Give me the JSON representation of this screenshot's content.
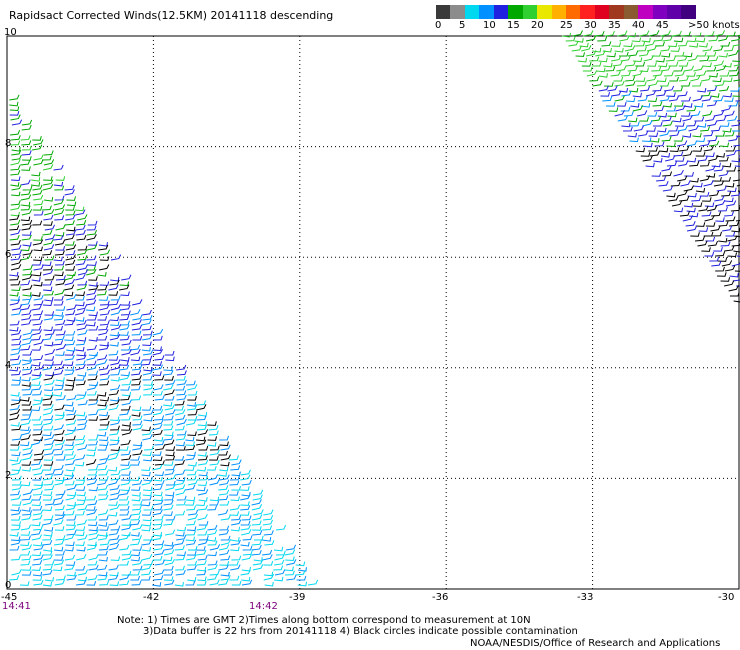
{
  "title": "Rapidsact Corrected Winds(12.5KM) 20141118 descending",
  "colorbar": {
    "labels": [
      "0",
      "5",
      "10",
      "15",
      "20",
      "25",
      "30",
      "35",
      "40",
      "45",
      ">50 knots"
    ],
    "colors": [
      "#3a3a3a",
      "#8c8c8c",
      "#00d8f0",
      "#0090ff",
      "#2020e0",
      "#00a800",
      "#30d030",
      "#e8e800",
      "#ffb000",
      "#ff6a00",
      "#ff2020",
      "#e00020",
      "#a03820",
      "#8a5a30",
      "#c000c0",
      "#8000c0",
      "#6000a8",
      "#400080"
    ]
  },
  "axes": {
    "x_ticks": [
      "-45",
      "-42",
      "-39",
      "-36",
      "-33",
      "-30"
    ],
    "y_ticks": [
      "10",
      "8",
      "6",
      "4",
      "2",
      "0"
    ],
    "x_range": [
      -45,
      -30
    ],
    "y_range": [
      0,
      10
    ]
  },
  "times": [
    "14:41",
    "14:42"
  ],
  "notes": [
    "Note: 1) Times are GMT 2)Times along bottom correspond to measurement at 10N",
    "3)Data buffer is 22 hrs from 20141118 4) Black circles indicate possible contamination"
  ],
  "credit": "NOAA/NESDIS/Office of Research and Applications"
}
